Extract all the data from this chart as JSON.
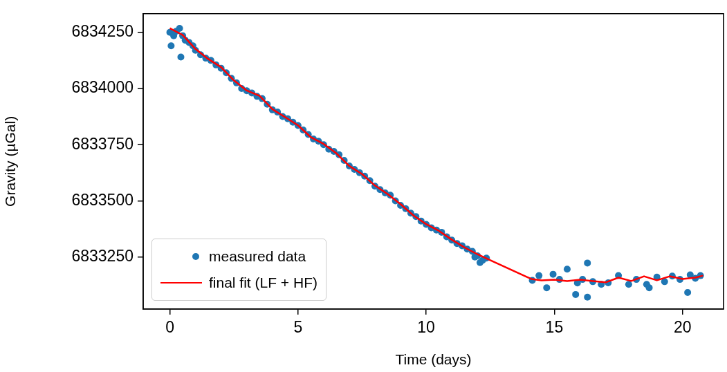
{
  "chart_data": {
    "type": "scatter",
    "xlabel": "Time (days)",
    "ylabel": "Gravity (µGal)",
    "xlim": [
      -1.04,
      21.6
    ],
    "ylim": [
      6833018,
      6834333
    ],
    "xticks": [
      0,
      5,
      10,
      15,
      20
    ],
    "yticks": [
      6833250,
      6833500,
      6833750,
      6834000,
      6834250
    ],
    "grid": false,
    "legend": "bottom left",
    "series": [
      {
        "name": "measured data",
        "type": "scatter",
        "marker": "circle",
        "color": "#1f77b4",
        "x": [
          0,
          0.05,
          0.15,
          0.25,
          0.38,
          0.43,
          0.5,
          0.6,
          0.75,
          0.9,
          1.0,
          1.2,
          1.4,
          1.6,
          1.8,
          2.0,
          2.2,
          2.4,
          2.6,
          2.8,
          3.0,
          3.2,
          3.4,
          3.6,
          3.8,
          4.0,
          4.2,
          4.4,
          4.6,
          4.8,
          5.0,
          5.2,
          5.4,
          5.6,
          5.8,
          6.0,
          6.2,
          6.4,
          6.6,
          6.8,
          7.0,
          7.2,
          7.4,
          7.6,
          7.8,
          8.0,
          8.2,
          8.4,
          8.6,
          8.8,
          9.0,
          9.2,
          9.4,
          9.6,
          9.8,
          10.0,
          10.2,
          10.4,
          10.6,
          10.8,
          11.0,
          11.2,
          11.4,
          11.6,
          11.8,
          11.9,
          12.0,
          12.1,
          12.2,
          12.35,
          14.14,
          14.4,
          14.7,
          14.95,
          15.2,
          15.5,
          15.83,
          15.9,
          16.1,
          16.29,
          16.29,
          16.5,
          16.83,
          17.1,
          17.5,
          17.9,
          18.2,
          18.6,
          18.7,
          19.0,
          19.3,
          19.6,
          19.9,
          20.2,
          20.3,
          20.5,
          20.7
        ],
        "values": [
          6834250,
          6834190,
          6834235,
          6834255,
          6834268,
          6834140,
          6834235,
          6834215,
          6834205,
          6834190,
          6834170,
          6834150,
          6834135,
          6834125,
          6834105,
          6834090,
          6834070,
          6834045,
          6834025,
          6834000,
          6833990,
          6833980,
          6833965,
          6833955,
          6833930,
          6833905,
          6833895,
          6833875,
          6833865,
          6833850,
          6833835,
          6833815,
          6833795,
          6833775,
          6833765,
          6833750,
          6833730,
          6833720,
          6833705,
          6833680,
          6833655,
          6833640,
          6833625,
          6833610,
          6833590,
          6833565,
          6833550,
          6833535,
          6833525,
          6833500,
          6833480,
          6833465,
          6833445,
          6833430,
          6833410,
          6833395,
          6833380,
          6833370,
          6833360,
          6833340,
          6833325,
          6833310,
          6833300,
          6833285,
          6833275,
          6833250,
          6833255,
          6833225,
          6833235,
          6833245,
          6833146,
          6833167,
          6833113,
          6833173,
          6833150,
          6833196,
          6833083,
          6833134,
          6833150,
          6833223,
          6833071,
          6833140,
          6833128,
          6833135,
          6833167,
          6833128,
          6833150,
          6833128,
          6833113,
          6833160,
          6833140,
          6833165,
          6833150,
          6833092,
          6833170,
          6833155,
          6833167
        ]
      },
      {
        "name": "final fit (LF + HF)",
        "type": "line",
        "line_style": "solid",
        "color": "#ff0000",
        "x": [
          0,
          0.5,
          1,
          1.5,
          2,
          2.5,
          3,
          3.5,
          4,
          4.5,
          5,
          5.5,
          6,
          6.5,
          7,
          7.5,
          8,
          8.5,
          9,
          9.5,
          10,
          10.5,
          11,
          11.5,
          12,
          12.4,
          14.1,
          14.5,
          15,
          15.5,
          16,
          16.5,
          17,
          17.5,
          18,
          18.5,
          19,
          19.5,
          20,
          20.5,
          20.8
        ],
        "values": [
          6834268,
          6834238,
          6834176,
          6834131,
          6834095,
          6834036,
          6833991,
          6833967,
          6833908,
          6833872,
          6833836,
          6833783,
          6833753,
          6833711,
          6833655,
          6833619,
          6833568,
          6833530,
          6833485,
          6833435,
          6833396,
          6833366,
          6833327,
          6833292,
          6833262,
          6833241,
          6833152,
          6833146,
          6833149,
          6833143,
          6833149,
          6833143,
          6833137,
          6833158,
          6833143,
          6833164,
          6833146,
          6833164,
          6833152,
          6833158,
          6833167
        ]
      }
    ]
  }
}
